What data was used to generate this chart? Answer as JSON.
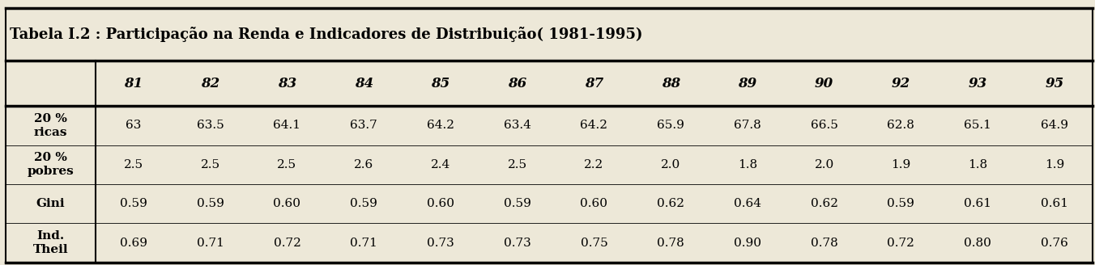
{
  "title": "Tabela I.2 : Participação na Renda e Indicadores de Distribuição( 1981-1995)",
  "columns": [
    "",
    "81",
    "82",
    "83",
    "84",
    "85",
    "86",
    "87",
    "88",
    "89",
    "90",
    "92",
    "93",
    "95"
  ],
  "rows": [
    {
      "label": "20 %\nricas",
      "values": [
        "63",
        "63.5",
        "64.1",
        "63.7",
        "64.2",
        "63.4",
        "64.2",
        "65.9",
        "67.8",
        "66.5",
        "62.8",
        "65.1",
        "64.9"
      ]
    },
    {
      "label": "20 %\npobres",
      "values": [
        "2.5",
        "2.5",
        "2.5",
        "2.6",
        "2.4",
        "2.5",
        "2.2",
        "2.0",
        "1.8",
        "2.0",
        "1.9",
        "1.8",
        "1.9"
      ]
    },
    {
      "label": "Gini",
      "values": [
        "0.59",
        "0.59",
        "0.60",
        "0.59",
        "0.60",
        "0.59",
        "0.60",
        "0.62",
        "0.64",
        "0.62",
        "0.59",
        "0.61",
        "0.61"
      ]
    },
    {
      "label": "Ind.\nTheil",
      "values": [
        "0.69",
        "0.71",
        "0.72",
        "0.71",
        "0.73",
        "0.73",
        "0.75",
        "0.78",
        "0.90",
        "0.78",
        "0.72",
        "0.80",
        "0.76"
      ]
    }
  ],
  "background_color": "#ede8d8",
  "title_fontsize": 13,
  "header_fontsize": 12,
  "cell_fontsize": 11,
  "label_fontsize": 11
}
